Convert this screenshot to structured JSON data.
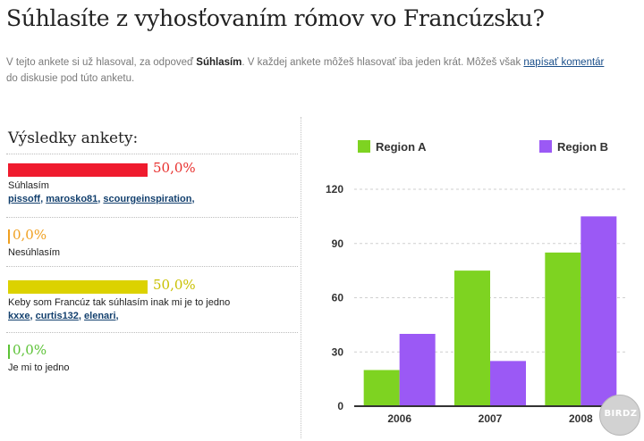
{
  "title": "Súhlasíte z vyhosťovaním rómov vo Francúzsku?",
  "intro": {
    "text_before": "V tejto ankete si už hlasoval, za odpoveď ",
    "answer": "Súhlasím",
    "text_middle": ". V každej ankete môžeš hlasovať iba jeden krát. Môžeš však ",
    "link": "napísať komentár",
    "text_after": "do diskusie pod túto anketu."
  },
  "results": {
    "title": "Výsledky ankety:",
    "options": [
      {
        "label": "Súhlasím",
        "percent": "50,0%",
        "value": 50,
        "color": "#ef1b2e",
        "text_color": "#e8302e",
        "voters": [
          "pissoff",
          "marosko81",
          "scourgeinspiration"
        ]
      },
      {
        "label": "Nesúhlasím",
        "percent": "0,0%",
        "value": 0,
        "color": "#f0a020",
        "text_color": "#f0a020",
        "voters": []
      },
      {
        "label": "Keby som Francúz tak súhlasím inak mi je to jedno",
        "percent": "50,0%",
        "value": 50,
        "color": "#dcd200",
        "text_color": "#c9c000",
        "voters": [
          "kxxe",
          "curtis132",
          "elenari"
        ]
      },
      {
        "label": "Je mi to jedno",
        "percent": "0,0%",
        "value": 0,
        "color": "#5cc236",
        "text_color": "#5cc236",
        "voters": []
      }
    ]
  },
  "chart_data": {
    "type": "bar",
    "categories": [
      "2006",
      "2007",
      "2008"
    ],
    "series": [
      {
        "name": "Region A",
        "values": [
          20,
          75,
          85
        ],
        "color": "#7ed321"
      },
      {
        "name": "Region B",
        "values": [
          40,
          25,
          105
        ],
        "color": "#9b59f5"
      }
    ],
    "ylim": [
      0,
      120
    ],
    "yticks": [
      0,
      30,
      60,
      90,
      120
    ],
    "grid": true,
    "legend": "top"
  },
  "watermark": "BIRDZ"
}
